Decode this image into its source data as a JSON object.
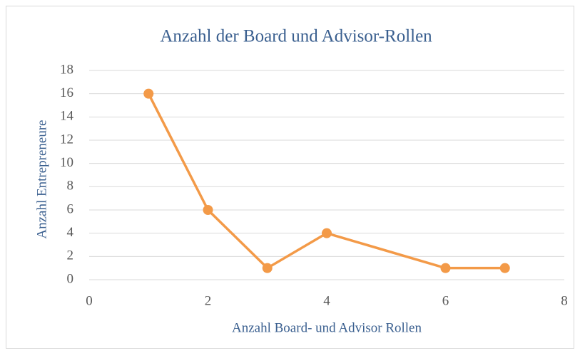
{
  "chart_data": {
    "type": "line",
    "title": "Anzahl der Board und Advisor-Rollen",
    "x_label": "Anzahl Board- und Advisor Rollen",
    "y_label": "Anzahl Entrepreneure",
    "x": [
      1,
      2,
      3,
      4,
      6,
      7
    ],
    "values": [
      16,
      6,
      1,
      4,
      1,
      1
    ],
    "color": "#f39a48",
    "xlim": [
      0,
      8
    ],
    "xticks": [
      0,
      2,
      4,
      6,
      8
    ],
    "ylim": [
      0,
      18
    ],
    "yticks": [
      0,
      2,
      4,
      6,
      8,
      10,
      12,
      14,
      16,
      18
    ],
    "grid": true
  }
}
